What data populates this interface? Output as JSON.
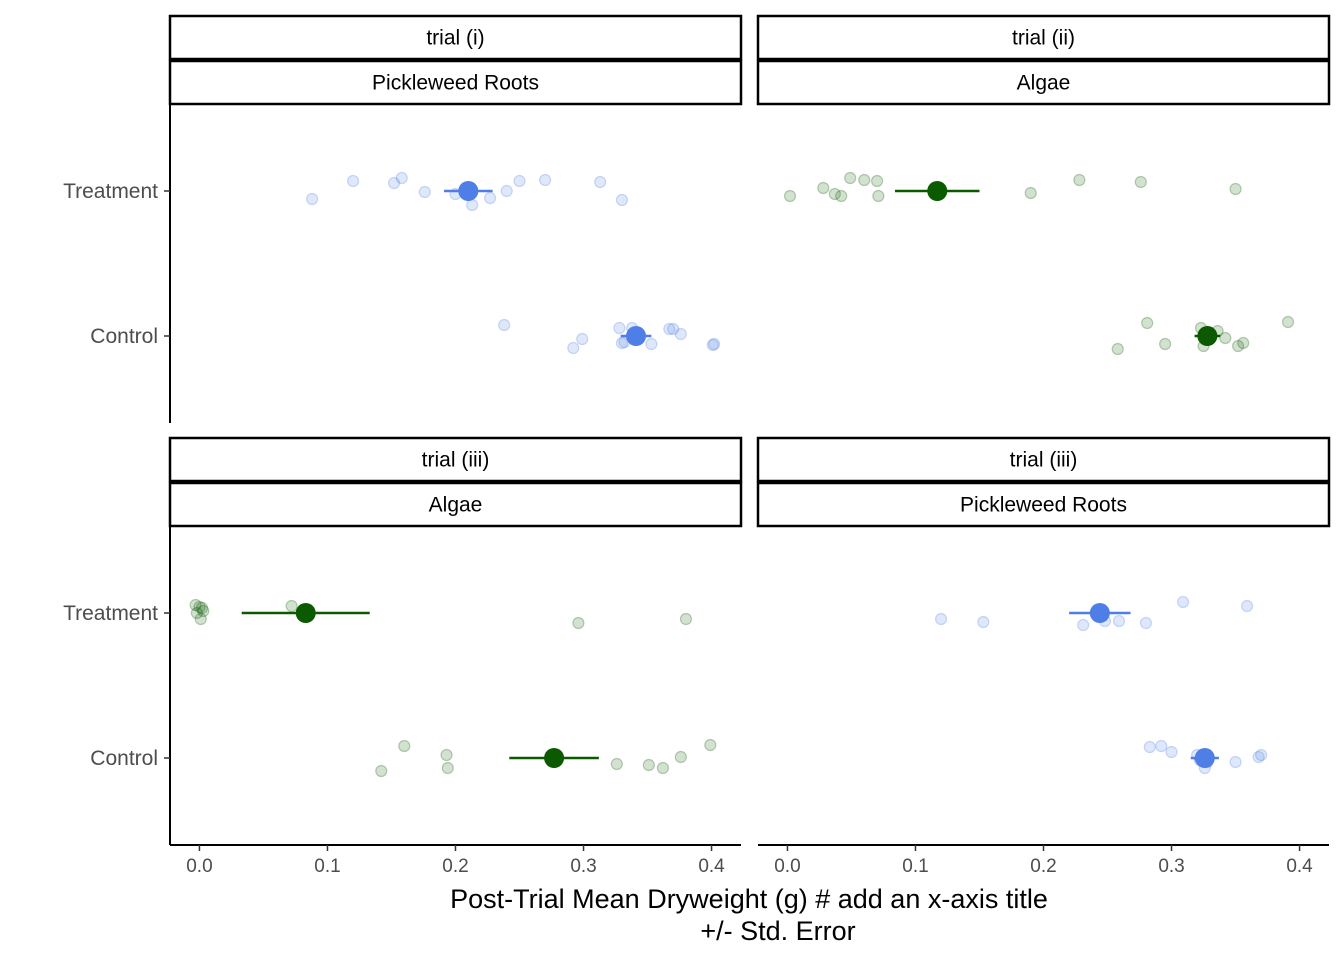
{
  "chart_data": {
    "type": "scatter",
    "xlabel_lines": [
      "Post-Trial Mean Dryweight (g) # add an x-axis title",
      "+/- Std. Error"
    ],
    "categories": [
      "Treatment",
      "Control"
    ],
    "x_ticks": [
      "0.0",
      "0.1",
      "0.2",
      "0.3",
      "0.4"
    ],
    "xlim": [
      -0.023,
      0.423
    ],
    "colors": {
      "blue": "#4f7fe6",
      "green": "#0b5a00"
    },
    "panels": [
      {
        "strip_top": "trial (i)",
        "strip_bottom": "Pickleweed Roots",
        "color": "blue",
        "series": [
          {
            "group": "Treatment",
            "points": [
              0.088,
              0.12,
              0.152,
              0.158,
              0.176,
              0.2,
              0.213,
              0.227,
              0.24,
              0.25,
              0.27,
              0.313,
              0.33
            ],
            "mean": 0.21,
            "se": 0.019
          },
          {
            "group": "Control",
            "points": [
              0.238,
              0.292,
              0.299,
              0.328,
              0.33,
              0.332,
              0.338,
              0.353,
              0.367,
              0.37,
              0.376,
              0.401,
              0.402
            ],
            "mean": 0.341,
            "se": 0.012
          }
        ]
      },
      {
        "strip_top": "trial (ii)",
        "strip_bottom": "Algae",
        "color": "green",
        "series": [
          {
            "group": "Treatment",
            "points": [
              0.002,
              0.028,
              0.037,
              0.042,
              0.049,
              0.06,
              0.07,
              0.071,
              0.19,
              0.228,
              0.276,
              0.35
            ],
            "mean": 0.117,
            "se": 0.033
          },
          {
            "group": "Control",
            "points": [
              0.258,
              0.281,
              0.295,
              0.323,
              0.325,
              0.33,
              0.336,
              0.342,
              0.352,
              0.356,
              0.391
            ],
            "mean": 0.328,
            "se": 0.01
          }
        ]
      },
      {
        "strip_top": "trial (iii)",
        "strip_bottom": "Algae",
        "color": "green",
        "series": [
          {
            "group": "Treatment",
            "points": [
              -0.003,
              -0.002,
              0.0,
              0.001,
              0.002,
              0.003,
              0.072,
              0.296,
              0.38
            ],
            "mean": 0.083,
            "se": 0.05
          },
          {
            "group": "Control",
            "points": [
              0.142,
              0.16,
              0.193,
              0.194,
              0.326,
              0.351,
              0.362,
              0.376,
              0.399
            ],
            "mean": 0.277,
            "se": 0.035
          }
        ]
      },
      {
        "strip_top": "trial (iii)",
        "strip_bottom": "Pickleweed Roots",
        "color": "blue",
        "series": [
          {
            "group": "Treatment",
            "points": [
              0.12,
              0.153,
              0.231,
              0.245,
              0.248,
              0.259,
              0.28,
              0.309,
              0.359
            ],
            "mean": 0.244,
            "se": 0.024
          },
          {
            "group": "Control",
            "points": [
              0.283,
              0.292,
              0.3,
              0.32,
              0.322,
              0.326,
              0.328,
              0.35,
              0.368,
              0.37
            ],
            "mean": 0.326,
            "se": 0.011
          }
        ]
      }
    ]
  }
}
